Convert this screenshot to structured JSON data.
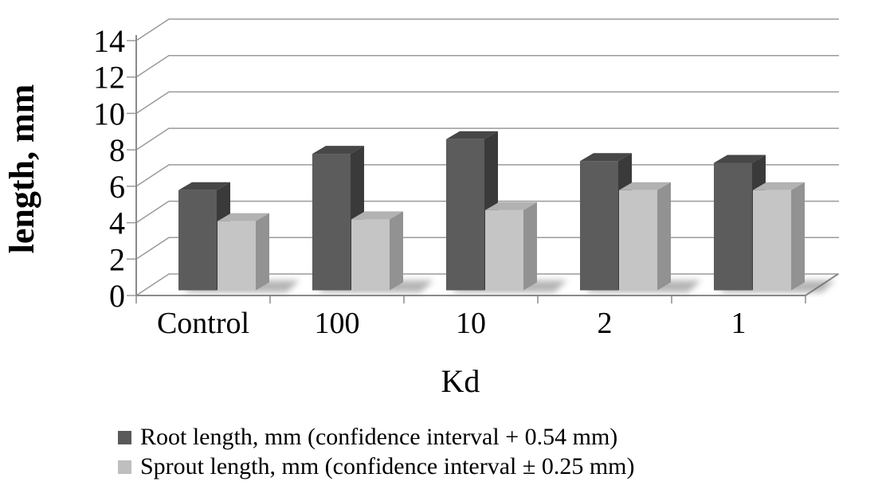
{
  "chart_data": {
    "type": "bar",
    "style": "3d-clustered-column",
    "title": "",
    "categories": [
      "Control",
      "100",
      "10",
      "2",
      "1"
    ],
    "series": [
      {
        "name": "Root length, mm (confidence interval + 0.54 mm)",
        "values": [
          5.5,
          7.5,
          8.3,
          7.1,
          7.0
        ],
        "colors": {
          "front": "#5c5c5c",
          "top": "#474747",
          "side": "#3a3a3a",
          "legend": "#595959"
        }
      },
      {
        "name": "Sprout length, mm (confidence interval ± 0.25 mm)",
        "values": [
          3.8,
          3.9,
          4.4,
          5.5,
          5.5
        ],
        "colors": {
          "front": "#c5c5c5",
          "top": "#b2b2b2",
          "side": "#929292",
          "legend": "#bfbfbf"
        }
      }
    ],
    "xlabel": "Kd",
    "ylabel": "length, mm",
    "ylim": [
      0,
      14
    ],
    "ytick_step": 2,
    "ytick_labels": [
      "0",
      "2",
      "4",
      "6",
      "8",
      "10",
      "12",
      "14"
    ],
    "grid": true,
    "legend_position": "bottom-left",
    "colors": {
      "gridline": "#9a9a9a",
      "axis": "#8a8a8a",
      "text": "#000000",
      "background": "#ffffff"
    }
  }
}
